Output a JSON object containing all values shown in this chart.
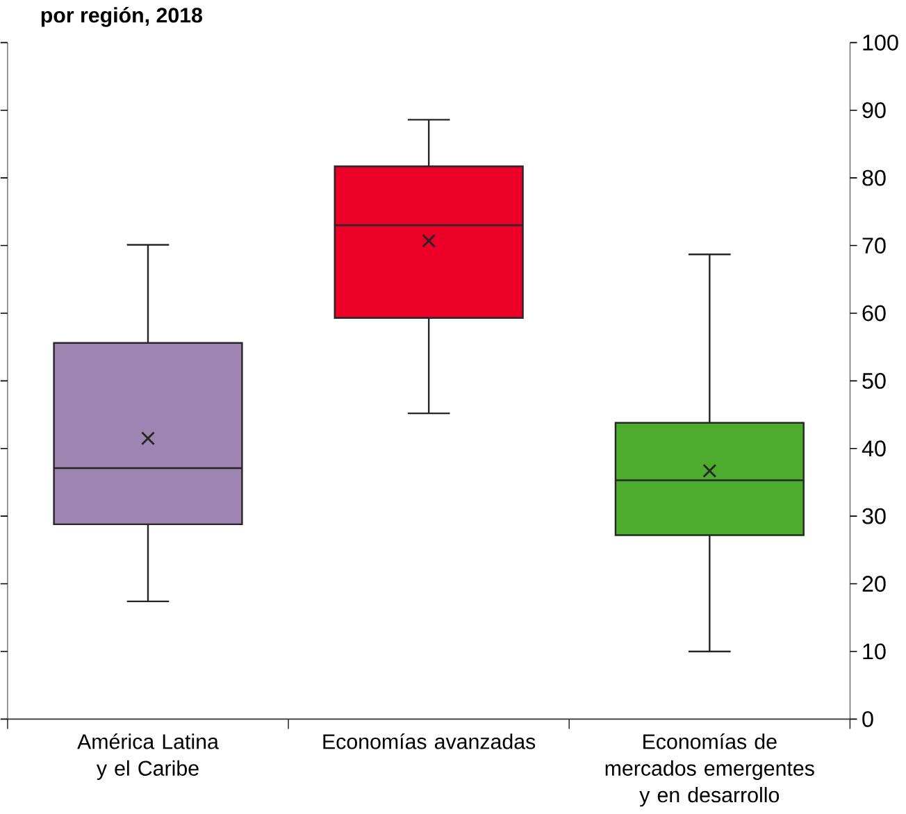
{
  "chart_data": {
    "type": "box",
    "title": "por región, 2018",
    "categories": [
      "América Latina y el Caribe",
      "Economías avanzadas",
      "Economías de mercados emergentes y en desarrollo"
    ],
    "colors": [
      "#9e84b0",
      "#ec0028",
      "#4dab2e"
    ],
    "boxes": [
      {
        "low": 17.4,
        "q1": 28.8,
        "median": 37.1,
        "q3": 55.6,
        "high": 70.1,
        "mean": 41.5
      },
      {
        "low": 45.2,
        "q1": 59.3,
        "median": 73.0,
        "q3": 81.7,
        "high": 88.6,
        "mean": 70.7
      },
      {
        "low": 10.0,
        "q1": 27.2,
        "median": 35.3,
        "q3": 43.8,
        "high": 68.7,
        "mean": 36.7
      }
    ],
    "ylim": [
      0,
      100
    ],
    "yticks": [
      0,
      10,
      20,
      30,
      40,
      50,
      60,
      70,
      80,
      90,
      100
    ],
    "grid": false,
    "marker": "cross"
  }
}
